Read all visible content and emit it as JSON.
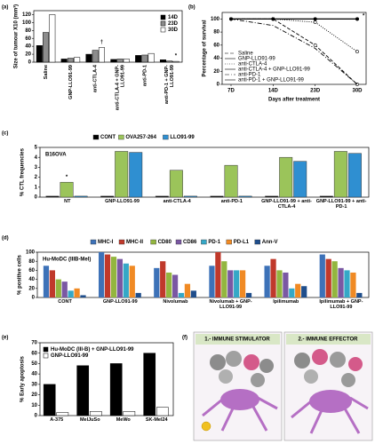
{
  "chart_data": [
    {
      "type": "bar",
      "panel_label": "(a)",
      "y_label": "Size of tumour X10 (mm³)",
      "categories": [
        "Saline",
        "GNP-LLO91-99",
        "anti-CTLA-4",
        "anti-CTLA-4 + GNP-LLO91-99",
        "anti-PD-1",
        "anti-PD-1 + GNP-LLO91-99"
      ],
      "series": [
        {
          "name": "14D",
          "color": "#000000",
          "values": [
            42,
            8,
            20,
            7,
            17,
            6
          ]
        },
        {
          "name": "23D",
          "color": "#8c8c8c",
          "values": [
            75,
            10,
            30,
            8,
            18,
            3
          ]
        },
        {
          "name": "30D",
          "color": "#ffffff",
          "values": [
            120,
            12,
            37,
            8,
            22,
            2
          ]
        }
      ],
      "edgecolor": "#000000",
      "ylim": [
        0,
        130
      ],
      "yticks": [
        0,
        20,
        40,
        60,
        80,
        100,
        120
      ],
      "legend": "upper right",
      "xtick_rotation": 90,
      "annotations": [
        {
          "text": "†",
          "category": "anti-CTLA-4",
          "series": "30D"
        },
        {
          "text": "*",
          "category": "anti-PD-1 + GNP-LLO91-99",
          "series": "30D"
        }
      ]
    },
    {
      "type": "line",
      "panel_label": "(b)",
      "y_label": "Percentage of survival",
      "x_label": "Days after treatment",
      "categories": [
        "7D",
        "14D",
        "23D",
        "30D"
      ],
      "series": [
        {
          "name": "Saline",
          "color": "#000000",
          "linestyle": "dashed",
          "marker": "circle-open",
          "values": [
            100,
            100,
            60,
            0
          ]
        },
        {
          "name": "GNP-LLO91-99",
          "color": "#000000",
          "linestyle": "solid",
          "marker": "circle",
          "values": [
            100,
            100,
            100,
            100
          ]
        },
        {
          "name": "anti-CTLA-4",
          "color": "#000000",
          "linestyle": "dotted",
          "marker": "circle-open",
          "values": [
            100,
            100,
            95,
            50
          ]
        },
        {
          "name": "anti-CTLA-4 + GNP-LLO91-99",
          "color": "#000000",
          "linestyle": "solid",
          "marker": "circle-open",
          "values": [
            100,
            100,
            100,
            100
          ]
        },
        {
          "name": "anti-PD-1",
          "color": "#000000",
          "linestyle": "dashdot",
          "marker": "none",
          "values": [
            100,
            90,
            55,
            0
          ]
        },
        {
          "name": "anti-PD-1 + GNP-LLO91-99",
          "color": "#000000",
          "linestyle": "solid",
          "marker": "circle",
          "values": [
            100,
            100,
            100,
            100
          ]
        }
      ],
      "ylim": [
        0,
        110
      ],
      "yticks": [
        0,
        20,
        40,
        60,
        80,
        100
      ],
      "legend": "lower left",
      "annotations": [
        {
          "text": "*",
          "x": "30D"
        }
      ]
    },
    {
      "type": "bar",
      "panel_label": "(c)",
      "title": "B16OVA",
      "y_label": "% CTL frequencies",
      "categories": [
        "NT",
        "GNP-LLO91-99",
        "anti-CTLA-4",
        "anti-PD-1",
        "GNP-LLO91-99 + anti-CTLA-4",
        "GNP-LLO91-99 + anti-PD-1"
      ],
      "series": [
        {
          "name": "CONT",
          "color": "#000000",
          "values": [
            0.1,
            0.1,
            0.1,
            0.1,
            0.1,
            0.1
          ]
        },
        {
          "name": "OVA257-264",
          "color": "#9bc45a",
          "values": [
            1.5,
            4.6,
            2.7,
            3.2,
            4.0,
            4.6
          ]
        },
        {
          "name": "LLO91-99",
          "color": "#2f8fd1",
          "values": [
            0.1,
            4.5,
            0.1,
            0.1,
            3.6,
            4.4
          ]
        }
      ],
      "edgecolor": "#333333",
      "ylim": [
        0,
        5
      ],
      "yticks": [
        0,
        1,
        2,
        3,
        4,
        5
      ],
      "legend": "top",
      "annotations": [
        {
          "text": "*",
          "category": "NT",
          "series": "OVA257-264"
        }
      ]
    },
    {
      "type": "bar",
      "panel_label": "(d)",
      "title": "Hu-MoDC (IIIB-Mel)",
      "y_label": "% positive cells",
      "categories": [
        "CONT",
        "GNP-LLO91-99",
        "Nivolumab",
        "Nivolumab + GNP-LLO91-99",
        "Ipilimumab",
        "Ipilimumab + GNP-LLO91-99"
      ],
      "series": [
        {
          "name": "MHC-I",
          "color": "#3d72b8",
          "values": [
            70,
            100,
            65,
            70,
            70,
            95
          ]
        },
        {
          "name": "MHC-II",
          "color": "#c0392b",
          "values": [
            60,
            95,
            80,
            100,
            85,
            85
          ]
        },
        {
          "name": "CD80",
          "color": "#93b63f",
          "values": [
            40,
            90,
            55,
            80,
            60,
            80
          ]
        },
        {
          "name": "CD86",
          "color": "#7a58a3",
          "values": [
            35,
            85,
            50,
            60,
            55,
            65
          ]
        },
        {
          "name": "PD-1",
          "color": "#35a8c7",
          "values": [
            15,
            75,
            10,
            60,
            20,
            60
          ]
        },
        {
          "name": "PD-L1",
          "color": "#f08a24",
          "values": [
            20,
            70,
            30,
            60,
            30,
            55
          ]
        },
        {
          "name": "Ann-V",
          "color": "#1f4e8c",
          "values": [
            5,
            10,
            15,
            10,
            25,
            10
          ]
        }
      ],
      "edgecolor": "none",
      "ylim": [
        0,
        100
      ],
      "yticks": [
        0,
        20,
        40,
        60,
        80,
        100
      ],
      "legend": "top"
    },
    {
      "type": "bar",
      "panel_label": "(e)",
      "y_label": "% Early apoptosis",
      "categories": [
        "A-375",
        "MelJuSo",
        "MeWo",
        "SK-Mel24"
      ],
      "series": [
        {
          "name": "Hu-MoDC (III-B) + GNP-LLO91-99",
          "color": "#000000",
          "values": [
            30,
            48,
            50,
            60
          ]
        },
        {
          "name": "GNP-LLO91-99",
          "color": "#ffffff",
          "values": [
            3,
            4,
            4,
            8
          ]
        }
      ],
      "edgecolor": "#000000",
      "ylim": [
        0,
        70
      ],
      "yticks": [
        0,
        10,
        20,
        30,
        40,
        50,
        60,
        70
      ],
      "legend": "upper left"
    }
  ],
  "diagram": {
    "panel_label": "(f)",
    "boxes": [
      {
        "title": "1.- IMMUNE STIMULATOR"
      },
      {
        "title": "2.- IMMUNE EFFECTOR"
      }
    ]
  }
}
